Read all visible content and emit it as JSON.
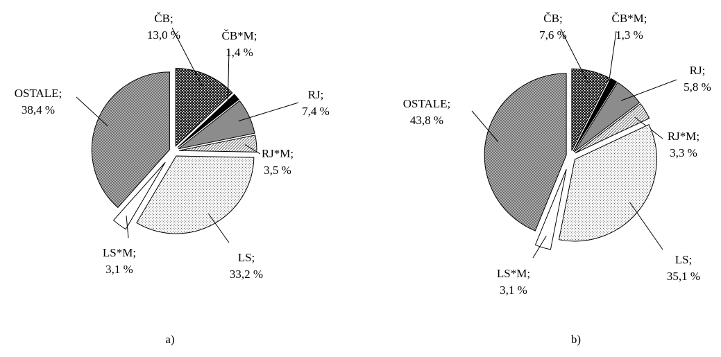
{
  "chart_data": [
    {
      "type": "pie",
      "title": "a)",
      "categories": [
        "ČB;",
        "ČB*M;",
        "RJ;",
        "RJ*M;",
        "LS;",
        "LS*M;",
        "OSTALE;"
      ],
      "values": [
        13.0,
        1.4,
        7.4,
        3.5,
        33.2,
        3.1,
        38.4
      ],
      "value_labels": [
        "13,0 %",
        "1,4 %",
        "7,4 %",
        "3,5 %",
        "33,2 %",
        "3,1 %",
        "38,4 %"
      ]
    },
    {
      "type": "pie",
      "title": "b)",
      "categories": [
        "ČB;",
        "ČB*M;",
        "RJ;",
        "RJ*M;",
        "LS;",
        "LS*M;",
        "OSTALE;"
      ],
      "values": [
        7.6,
        1.3,
        5.8,
        3.3,
        35.1,
        3.1,
        43.8
      ],
      "value_labels": [
        "7,6 %",
        "1,3 %",
        "5,8 %",
        "3,3 %",
        "35,1 %",
        "3,1 %",
        "43,8 %"
      ]
    }
  ]
}
